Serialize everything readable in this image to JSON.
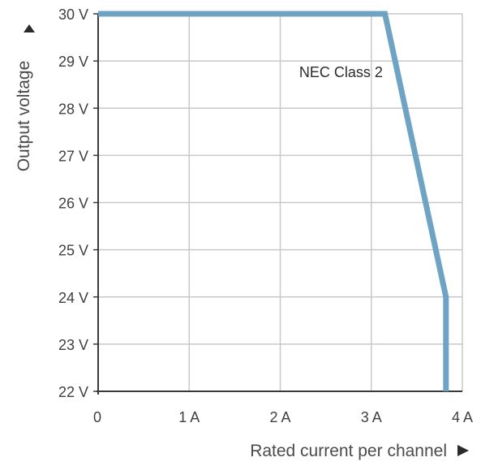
{
  "chart_data": {
    "type": "line",
    "xlabel": "Rated current per channel",
    "ylabel": "Output voltage",
    "xlim": [
      0,
      4
    ],
    "ylim": [
      22,
      30
    ],
    "x_ticks": [
      {
        "value": 0,
        "label": "0"
      },
      {
        "value": 1,
        "label": "1 A"
      },
      {
        "value": 2,
        "label": "2 A"
      },
      {
        "value": 3,
        "label": "3 A"
      },
      {
        "value": 4,
        "label": "4 A"
      }
    ],
    "y_ticks": [
      {
        "value": 22,
        "label": "22 V"
      },
      {
        "value": 23,
        "label": "23 V"
      },
      {
        "value": 24,
        "label": "24 V"
      },
      {
        "value": 25,
        "label": "25 V"
      },
      {
        "value": 26,
        "label": "26 V"
      },
      {
        "value": 27,
        "label": "27 V"
      },
      {
        "value": 28,
        "label": "28 V"
      },
      {
        "value": 29,
        "label": "29 V"
      },
      {
        "value": 30,
        "label": "30 V"
      }
    ],
    "grid": true,
    "series": [
      {
        "x": [
          0,
          3.15,
          3.82,
          3.82
        ],
        "y": [
          30,
          30,
          24,
          22
        ],
        "color": "#6fa3c4"
      }
    ],
    "annotations": [
      {
        "text": "NEC Class 2",
        "x": 2.6,
        "y": 29
      }
    ],
    "colors": {
      "line": "#6fa3c4",
      "grid": "#c8c8c8",
      "axis": "#3a3a3a",
      "text": "#3f3f3f"
    }
  }
}
